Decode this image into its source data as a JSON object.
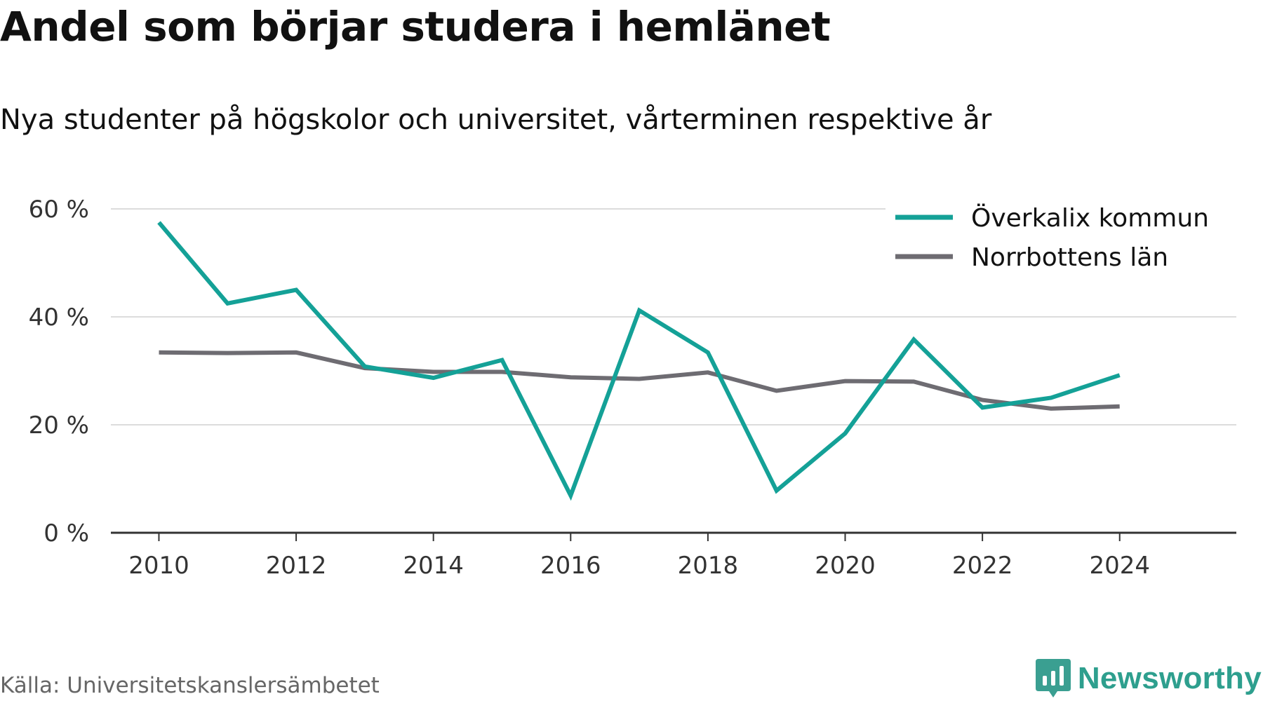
{
  "chart_data": {
    "type": "line",
    "title": "Andel som börjar studera i hemlänet",
    "subtitle": "Nya studenter på högskolor och universitet, vårterminen respektive år",
    "x": [
      2010,
      2011,
      2012,
      2013,
      2014,
      2015,
      2016,
      2017,
      2018,
      2019,
      2020,
      2021,
      2022,
      2023,
      2024
    ],
    "x_ticks": [
      "2010",
      "2012",
      "2014",
      "2016",
      "2018",
      "2020",
      "2022",
      "2024"
    ],
    "y_ticks": [
      "0 %",
      "20 %",
      "40 %",
      "60 %"
    ],
    "ylim": [
      0,
      60
    ],
    "grid": true,
    "legend_position": "top-right",
    "series": [
      {
        "name": "Överkalix kommun",
        "color": "#14a197",
        "values": [
          57.5,
          42.5,
          45.0,
          30.8,
          28.7,
          32.0,
          6.9,
          41.2,
          33.4,
          7.8,
          18.4,
          35.8,
          23.2,
          25.0,
          29.2
        ]
      },
      {
        "name": "Norrbottens län",
        "color": "#6e6c72",
        "values": [
          33.4,
          33.3,
          33.4,
          30.5,
          29.8,
          29.8,
          28.8,
          28.5,
          29.7,
          26.3,
          28.1,
          28.0,
          24.6,
          23.0,
          23.4
        ]
      }
    ]
  },
  "source": "Källa: Universitetskanslersämbetet",
  "brand": {
    "name": "Newsworthy",
    "icon": "newsworthy-logo-icon",
    "color": "#2e9f8e"
  }
}
